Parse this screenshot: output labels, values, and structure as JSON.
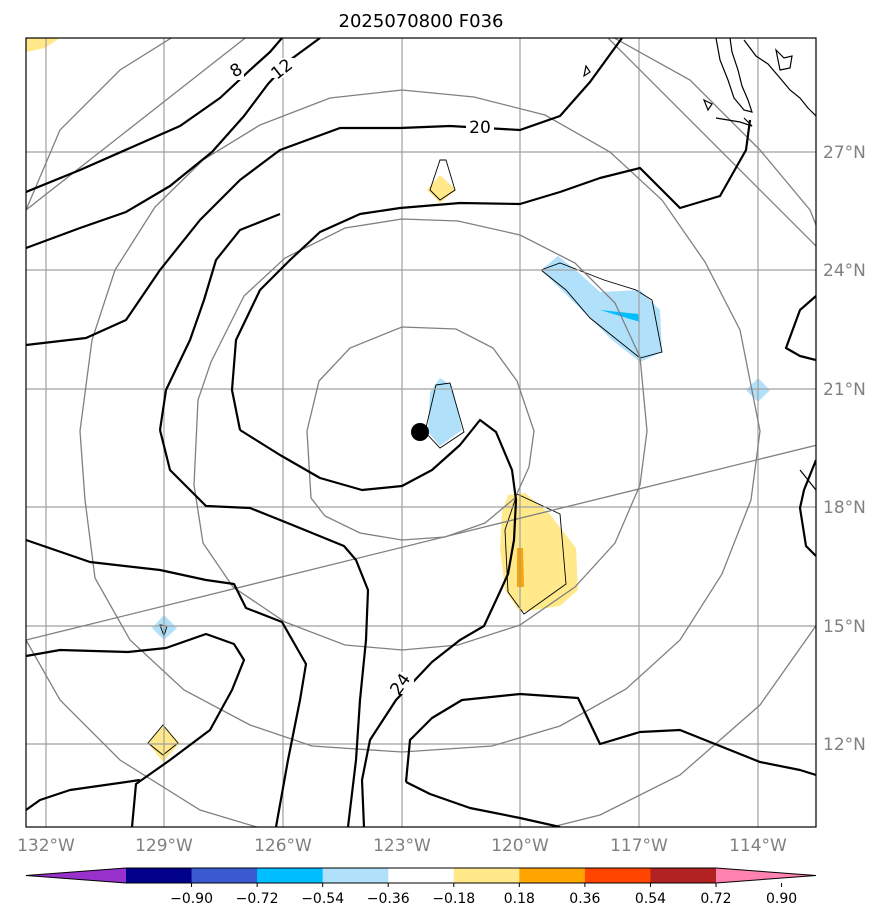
{
  "title": "2025070800 F036",
  "map": {
    "lat_labels": [
      "27°N",
      "24°N",
      "21°N",
      "18°N",
      "15°N",
      "12°N"
    ],
    "lon_labels": [
      "132°W",
      "129°W",
      "126°W",
      "123°W",
      "120°W",
      "117°W",
      "114°W"
    ],
    "gridlines": true,
    "contour_labels": [
      "8",
      "12",
      "20",
      "24"
    ],
    "center_marker": "storm-center-dot",
    "range_rings": 5,
    "colors": {
      "contour": "#000000",
      "grid": "#a0a0a0",
      "ring": "#808080",
      "coast": "#000000"
    }
  },
  "colorbar": {
    "ticks": [
      "−0.90",
      "−0.72",
      "−0.54",
      "−0.36",
      "−0.18",
      "0.18",
      "0.36",
      "0.54",
      "0.72",
      "0.90"
    ],
    "colors": [
      "#9932cc",
      "#00008b",
      "#3a5bcf",
      "#00bfff",
      "#b0e0fa",
      "#ffffff",
      "#ffe98a",
      "#ffa500",
      "#ff4500",
      "#b22222",
      "#ff82b0"
    ],
    "extend": "both"
  }
}
